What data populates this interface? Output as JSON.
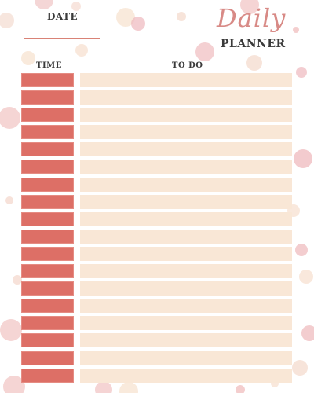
{
  "header": {
    "date_label": "DATE",
    "title_script": "Daily",
    "title_main": "PLANNER"
  },
  "columns": {
    "time": "TIME",
    "todo": "TO DO"
  },
  "planner": {
    "row_count": 18
  },
  "colors": {
    "time_cell": "#dd6f66",
    "todo_cell": "#f9e7d6",
    "accent": "#d98276",
    "dots": "#f1cccc",
    "dots_light": "#f8e3d8"
  }
}
